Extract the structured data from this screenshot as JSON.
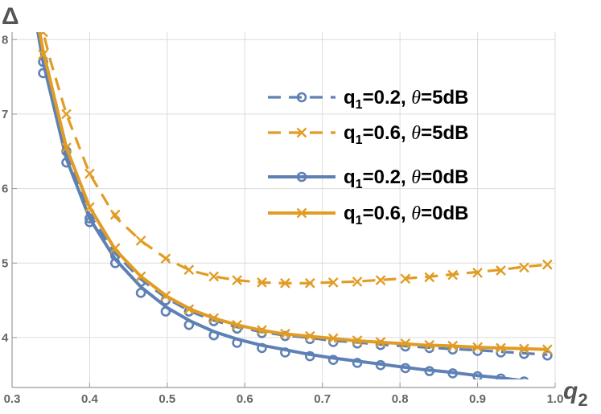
{
  "chart_data": {
    "type": "line",
    "xlabel": "q",
    "xlabel_sub": "2",
    "ylabel": "Δ",
    "xlim": [
      0.3,
      1.0
    ],
    "ylim": [
      3.33,
      8.1
    ],
    "x_ticks": [
      0.3,
      0.4,
      0.5,
      0.6,
      0.7,
      0.8,
      0.9,
      1.0
    ],
    "x_tick_labels": [
      "0.3",
      "0.4",
      "0.5",
      "0.6",
      "0.7",
      "0.8",
      "0.9",
      "1.0"
    ],
    "y_ticks": [
      4,
      5,
      6,
      7,
      8
    ],
    "y_tick_labels": [
      "4",
      "5",
      "6",
      "7",
      "8"
    ],
    "grid": true,
    "legend_position": "top-right",
    "series": [
      {
        "name_prefix": "q",
        "name_sub": "1",
        "name_q": "=0.2, ",
        "name_theta": "θ",
        "name_rest": "=5dB",
        "color": "#5E81B5",
        "dash": "dashed",
        "marker": "circle",
        "curve_x": [
          0.34,
          0.37,
          0.4,
          0.433,
          0.466,
          0.5,
          0.53,
          0.56,
          0.59,
          0.62,
          0.65,
          0.68,
          0.71,
          0.74,
          0.77,
          0.8,
          0.83,
          0.86,
          0.9,
          0.93,
          0.96,
          0.99
        ],
        "curve_y": [
          7.85,
          6.5,
          5.65,
          5.13,
          4.78,
          4.52,
          4.35,
          4.23,
          4.14,
          4.08,
          4.03,
          4.0,
          3.96,
          3.94,
          3.91,
          3.89,
          3.87,
          3.85,
          3.83,
          3.81,
          3.79,
          3.77
        ],
        "marker_x": [
          0.34,
          0.37,
          0.4,
          0.433,
          0.466,
          0.498,
          0.528,
          0.56,
          0.59,
          0.622,
          0.652,
          0.684,
          0.714,
          0.745,
          0.775,
          0.807,
          0.838,
          0.868,
          0.9,
          0.93,
          0.96,
          0.99
        ],
        "marker_y": [
          7.7,
          6.5,
          5.6,
          5.1,
          4.75,
          4.5,
          4.35,
          4.22,
          4.12,
          4.06,
          4.02,
          3.98,
          3.94,
          3.92,
          3.9,
          3.88,
          3.86,
          3.84,
          3.82,
          3.8,
          3.78,
          3.76
        ]
      },
      {
        "name_prefix": "q",
        "name_sub": "1",
        "name_q": "=0.6, ",
        "name_theta": "θ",
        "name_rest": "=5dB",
        "color": "#E19C24",
        "dash": "dashed",
        "marker": "x",
        "curve_x": [
          0.335,
          0.35,
          0.37,
          0.4,
          0.433,
          0.466,
          0.5,
          0.53,
          0.56,
          0.59,
          0.62,
          0.65,
          0.68,
          0.71,
          0.74,
          0.77,
          0.8,
          0.83,
          0.86,
          0.9,
          0.93,
          0.96,
          0.99
        ],
        "curve_y": [
          8.3,
          7.7,
          7.0,
          6.2,
          5.62,
          5.3,
          5.05,
          4.9,
          4.82,
          4.77,
          4.74,
          4.73,
          4.73,
          4.74,
          4.75,
          4.77,
          4.79,
          4.81,
          4.84,
          4.88,
          4.91,
          4.95,
          4.98
        ],
        "marker_x": [
          0.34,
          0.37,
          0.4,
          0.433,
          0.466,
          0.498,
          0.528,
          0.56,
          0.59,
          0.622,
          0.652,
          0.684,
          0.714,
          0.745,
          0.775,
          0.807,
          0.838,
          0.868,
          0.9,
          0.93,
          0.96,
          0.99
        ],
        "marker_y": [
          8.1,
          7.0,
          6.2,
          5.65,
          5.3,
          5.06,
          4.91,
          4.82,
          4.77,
          4.74,
          4.73,
          4.73,
          4.74,
          4.75,
          4.77,
          4.79,
          4.81,
          4.84,
          4.87,
          4.9,
          4.94,
          4.98
        ]
      },
      {
        "name_prefix": "q",
        "name_sub": "1",
        "name_q": "=0.2, ",
        "name_theta": "θ",
        "name_rest": "=0dB",
        "color": "#5E81B5",
        "dash": "solid",
        "marker": "circle",
        "curve_x": [
          0.33,
          0.34,
          0.37,
          0.4,
          0.433,
          0.466,
          0.5,
          0.53,
          0.56,
          0.59,
          0.62,
          0.65,
          0.68,
          0.71,
          0.74,
          0.77,
          0.8,
          0.83,
          0.86,
          0.9,
          0.93,
          0.96,
          0.99
        ],
        "curve_y": [
          8.3,
          7.7,
          6.4,
          5.6,
          5.05,
          4.68,
          4.4,
          4.22,
          4.08,
          3.98,
          3.9,
          3.84,
          3.78,
          3.73,
          3.69,
          3.65,
          3.61,
          3.57,
          3.54,
          3.49,
          3.46,
          3.42,
          3.38
        ],
        "marker_x": [
          0.34,
          0.37,
          0.4,
          0.433,
          0.466,
          0.498,
          0.528,
          0.56,
          0.59,
          0.622,
          0.652,
          0.684,
          0.714,
          0.745,
          0.775,
          0.807,
          0.838,
          0.868,
          0.9,
          0.93,
          0.96,
          0.99
        ],
        "marker_y": [
          7.55,
          6.35,
          5.55,
          5.0,
          4.6,
          4.35,
          4.17,
          4.03,
          3.93,
          3.86,
          3.8,
          3.75,
          3.7,
          3.66,
          3.63,
          3.59,
          3.55,
          3.52,
          3.48,
          3.45,
          3.41,
          3.37
        ]
      },
      {
        "name_prefix": "q",
        "name_sub": "1",
        "name_q": "=0.6, ",
        "name_theta": "θ",
        "name_rest": "=0dB",
        "color": "#E19C24",
        "dash": "solid",
        "marker": "x",
        "curve_x": [
          0.33,
          0.34,
          0.37,
          0.4,
          0.433,
          0.466,
          0.5,
          0.53,
          0.56,
          0.59,
          0.62,
          0.65,
          0.68,
          0.71,
          0.74,
          0.77,
          0.8,
          0.83,
          0.86,
          0.9,
          0.93,
          0.96,
          0.99
        ],
        "curve_y": [
          8.4,
          7.85,
          6.55,
          5.75,
          5.18,
          4.82,
          4.55,
          4.38,
          4.26,
          4.17,
          4.1,
          4.05,
          4.02,
          3.99,
          3.96,
          3.94,
          3.92,
          3.9,
          3.89,
          3.87,
          3.86,
          3.85,
          3.84
        ],
        "marker_x": [
          0.34,
          0.37,
          0.4,
          0.433,
          0.466,
          0.498,
          0.528,
          0.56,
          0.59,
          0.622,
          0.652,
          0.684,
          0.714,
          0.745,
          0.775,
          0.807,
          0.838,
          0.868,
          0.9,
          0.93,
          0.96,
          0.99
        ],
        "marker_y": [
          7.8,
          6.55,
          5.75,
          5.2,
          4.82,
          4.56,
          4.38,
          4.26,
          4.17,
          4.1,
          4.05,
          4.02,
          3.99,
          3.96,
          3.94,
          3.92,
          3.9,
          3.89,
          3.87,
          3.86,
          3.85,
          3.84
        ]
      }
    ]
  }
}
